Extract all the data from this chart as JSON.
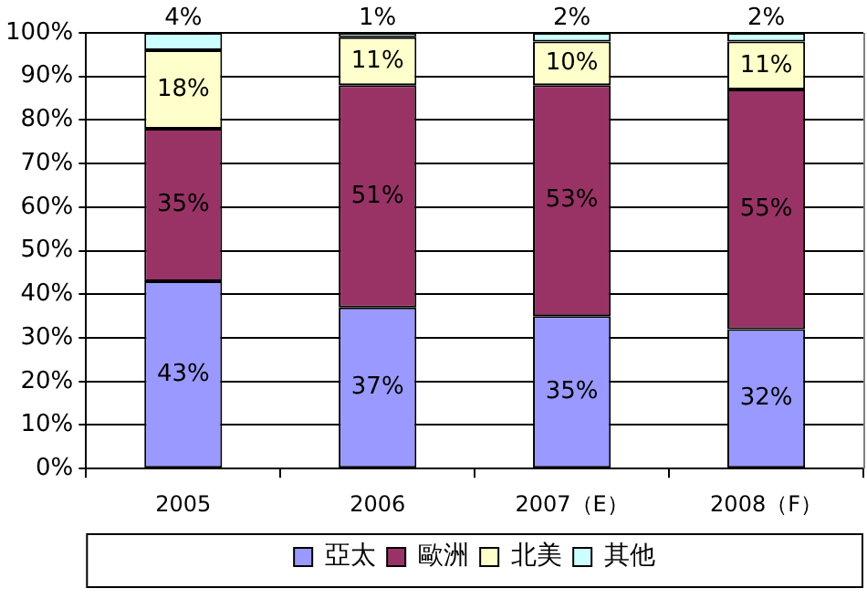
{
  "chart_data": {
    "type": "bar",
    "stacked": true,
    "categories": [
      "2005",
      "2006",
      "2007（E）",
      "2008（F）"
    ],
    "series": [
      {
        "name": "亞太",
        "color": "#9999ff",
        "values": [
          43,
          37,
          35,
          32
        ],
        "value_labels": [
          "43%",
          "37%",
          "35%",
          "32%"
        ]
      },
      {
        "name": "歐洲",
        "color": "#993366",
        "values": [
          35,
          51,
          53,
          55
        ],
        "value_labels": [
          "35%",
          "51%",
          "53%",
          "55%"
        ]
      },
      {
        "name": "北美",
        "color": "#ffffcc",
        "values": [
          18,
          11,
          10,
          11
        ],
        "value_labels": [
          "18%",
          "11%",
          "10%",
          "11%"
        ]
      },
      {
        "name": "其他",
        "color": "#ccffff",
        "values": [
          4,
          1,
          2,
          2
        ],
        "value_labels": [
          "4%",
          "1%",
          "2%",
          "2%"
        ]
      }
    ],
    "ylim": [
      0,
      100
    ],
    "yticks": [
      {
        "value": 0,
        "label": "0%"
      },
      {
        "value": 10,
        "label": "10%"
      },
      {
        "value": 20,
        "label": "20%"
      },
      {
        "value": 30,
        "label": "30%"
      },
      {
        "value": 40,
        "label": "40%"
      },
      {
        "value": 50,
        "label": "50%"
      },
      {
        "value": 60,
        "label": "60%"
      },
      {
        "value": 70,
        "label": "70%"
      },
      {
        "value": 80,
        "label": "80%"
      },
      {
        "value": 90,
        "label": "90%"
      },
      {
        "value": 100,
        "label": "100%"
      }
    ],
    "grid": "y",
    "legend": "bottom"
  }
}
